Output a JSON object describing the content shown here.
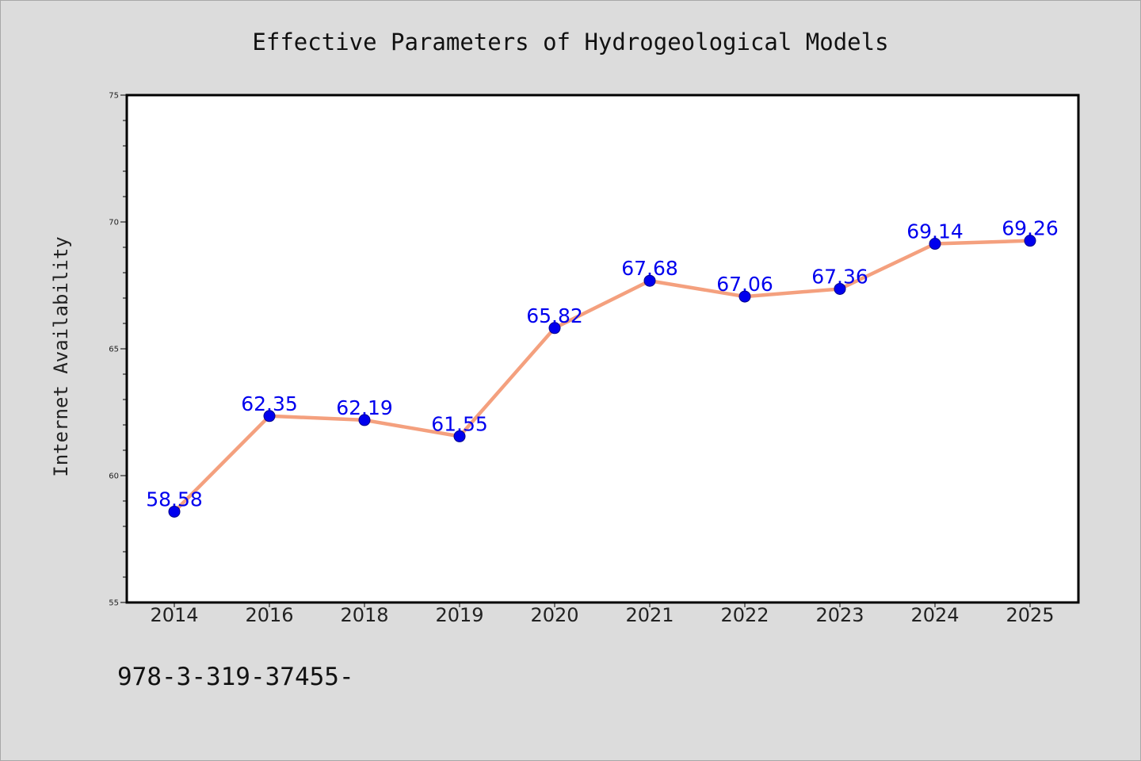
{
  "chart_data": {
    "type": "line",
    "title": "Effective Parameters of Hydrogeological Models",
    "xlabel": "",
    "ylabel": "Internet Availability",
    "categories": [
      "2014",
      "2016",
      "2018",
      "2019",
      "2020",
      "2021",
      "2022",
      "2023",
      "2024",
      "2025"
    ],
    "series": [
      {
        "values": [
          58.58,
          62.35,
          62.19,
          61.55,
          65.82,
          67.68,
          67.06,
          67.36,
          69.14,
          69.26
        ],
        "data_labels": [
          "58.58",
          "62.35",
          "62.19",
          "61.55",
          "65.82",
          "67.68",
          "67.06",
          "67.36",
          "69.14",
          "69.26"
        ],
        "line_color": "#f4a07e",
        "marker_color": "#0000ee"
      }
    ],
    "ylim": [
      55,
      75
    ],
    "yticks": [
      "55",
      "60",
      "65",
      "70",
      "75"
    ],
    "grid": false,
    "legend": "none"
  },
  "footer_text": "978-3-319-37455-",
  "colors": {
    "background": "#dcdcdc",
    "plot_area": "#ffffff",
    "line": "#f4a07e",
    "markers": "#0000ee",
    "data_labels": "#0000ee"
  }
}
